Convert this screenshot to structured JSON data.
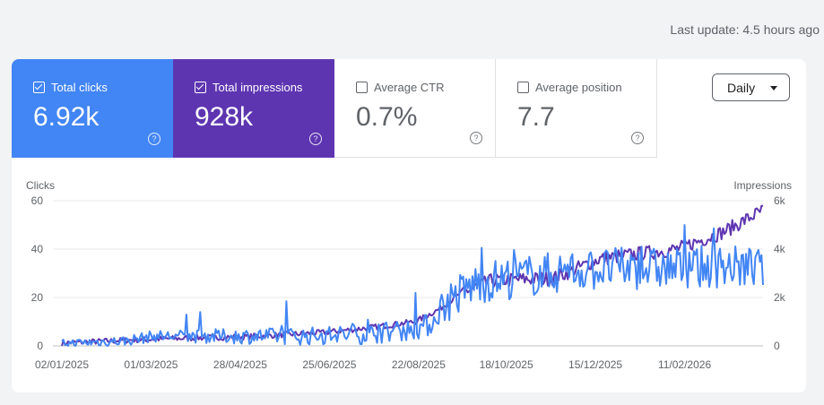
{
  "last_update": "Last update: 4.5 hours ago",
  "metrics": [
    {
      "label": "Total clicks",
      "value": "6.92k",
      "checked": true
    },
    {
      "label": "Total impressions",
      "value": "928k",
      "checked": true
    },
    {
      "label": "Average CTR",
      "value": "0.7%",
      "checked": false
    },
    {
      "label": "Average position",
      "value": "7.7",
      "checked": false
    }
  ],
  "period_select": "Daily",
  "colors": {
    "clicks": "#4285f4",
    "impressions": "#5e35b1",
    "grid": "#e8eaed",
    "text": "#5f6368"
  },
  "chart_data": {
    "type": "line",
    "left_axis_label": "Clicks",
    "right_axis_label": "Impressions",
    "left_ticks": [
      "60",
      "40",
      "20",
      "0"
    ],
    "right_ticks": [
      "6k",
      "4k",
      "2k",
      "0"
    ],
    "ylim_left": [
      0,
      60
    ],
    "ylim_right": [
      0,
      6000
    ],
    "x_ticks": [
      "02/01/2025",
      "01/03/2025",
      "28/04/2025",
      "25/06/2025",
      "22/08/2025",
      "18/10/2025",
      "15/12/2025",
      "11/02/2026"
    ],
    "x_start": "2025-01-02",
    "x_end": "2026-04-03",
    "grid": true,
    "series": [
      {
        "name": "Clicks",
        "axis": "left",
        "anchors": [
          [
            0,
            1
          ],
          [
            40,
            2
          ],
          [
            60,
            4
          ],
          [
            120,
            4
          ],
          [
            160,
            4
          ],
          [
            200,
            5
          ],
          [
            230,
            7
          ],
          [
            240,
            9
          ],
          [
            250,
            18
          ],
          [
            270,
            26
          ],
          [
            290,
            28
          ],
          [
            330,
            31
          ],
          [
            360,
            32
          ],
          [
            400,
            32
          ],
          [
            430,
            33
          ],
          [
            456,
            32
          ]
        ],
        "noise": 4
      },
      {
        "name": "Impressions",
        "axis": "right",
        "anchors": [
          [
            0,
            120
          ],
          [
            60,
            280
          ],
          [
            120,
            380
          ],
          [
            170,
            550
          ],
          [
            200,
            750
          ],
          [
            230,
            1000
          ],
          [
            245,
            1500
          ],
          [
            260,
            2200
          ],
          [
            280,
            2700
          ],
          [
            320,
            2800
          ],
          [
            350,
            3600
          ],
          [
            400,
            4000
          ],
          [
            430,
            4700
          ],
          [
            456,
            5600
          ]
        ],
        "noise": 300
      }
    ]
  }
}
